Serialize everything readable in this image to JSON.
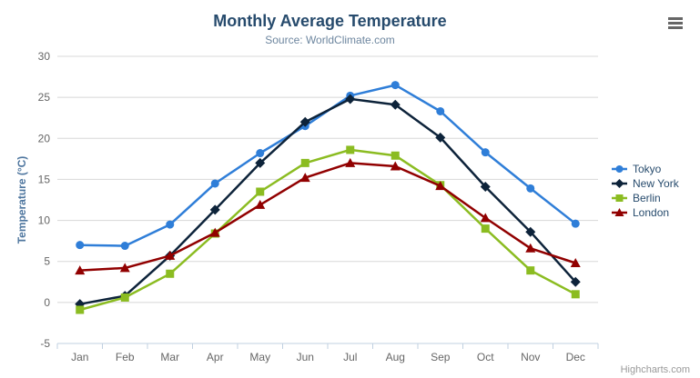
{
  "chart_data": {
    "type": "line",
    "title": "Monthly Average Temperature",
    "subtitle": "Source: WorldClimate.com",
    "categories": [
      "Jan",
      "Feb",
      "Mar",
      "Apr",
      "May",
      "Jun",
      "Jul",
      "Aug",
      "Sep",
      "Oct",
      "Nov",
      "Dec"
    ],
    "xlabel": "",
    "ylabel": "Temperature (°C)",
    "ylim": [
      -5,
      30
    ],
    "ytick_step": 5,
    "grid": "horizontal",
    "legend_position": "right",
    "series": [
      {
        "name": "Tokyo",
        "color": "#2f7ed8",
        "marker": "circle",
        "values": [
          7.0,
          6.9,
          9.5,
          14.5,
          18.2,
          21.5,
          25.2,
          26.5,
          23.3,
          18.3,
          13.9,
          9.6
        ]
      },
      {
        "name": "New York",
        "color": "#0d233a",
        "marker": "diamond",
        "values": [
          -0.2,
          0.8,
          5.7,
          11.3,
          17.0,
          22.0,
          24.8,
          24.1,
          20.1,
          14.1,
          8.6,
          2.5
        ]
      },
      {
        "name": "Berlin",
        "color": "#8bbc21",
        "marker": "square",
        "values": [
          -0.9,
          0.6,
          3.5,
          8.4,
          13.5,
          17.0,
          18.6,
          17.9,
          14.3,
          9.0,
          3.9,
          1.0
        ]
      },
      {
        "name": "London",
        "color": "#910000",
        "marker": "triangle",
        "values": [
          3.9,
          4.2,
          5.7,
          8.5,
          11.9,
          15.2,
          17.0,
          16.6,
          14.2,
          10.3,
          6.6,
          4.8
        ]
      }
    ]
  },
  "credits": "Highcharts.com",
  "colors": {
    "background": "#ffffff",
    "grid": "#d8d8d8",
    "axis_line": "#c0d0e0",
    "axis_label": "#666666",
    "title": "#274b6d",
    "subtitle": "#6d869f",
    "y_axis_title": "#4d759e",
    "legend_text": "#274b6d",
    "credits_text": "#999999",
    "menu_icon": "#666666"
  }
}
